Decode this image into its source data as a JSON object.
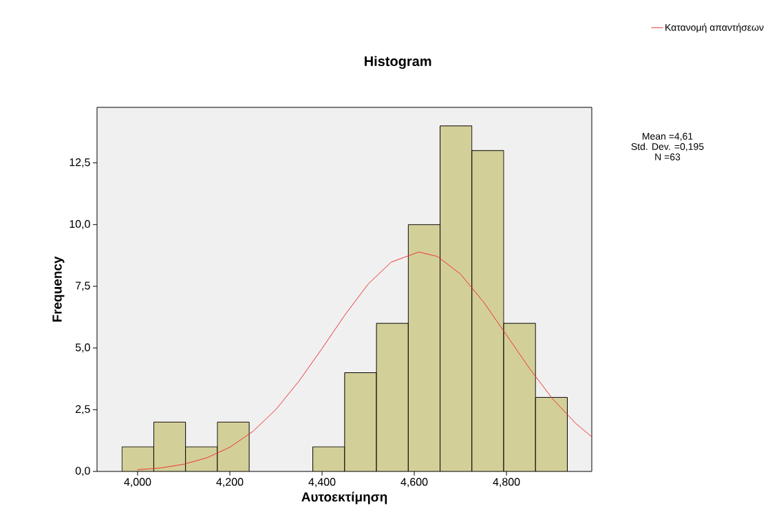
{
  "chart_data": {
    "type": "histogram",
    "title": "Histogram",
    "xlabel": "Αυτοεκτίμηση",
    "ylabel": "Frequency",
    "bins": [
      3.966,
      4.035,
      4.104,
      4.173,
      4.242,
      4.311,
      4.38,
      4.449,
      4.518,
      4.587,
      4.656,
      4.725,
      4.794,
      4.863,
      4.932
    ],
    "values": [
      1,
      2,
      1,
      2,
      0,
      0,
      1,
      4,
      6,
      10,
      14,
      13,
      6,
      3
    ],
    "color": "#d3cf98",
    "series": [
      {
        "name": "Κατανομή απαντήσεων",
        "type": "line",
        "color": "#ee3333",
        "x": [
          4.0,
          4.05,
          4.1,
          4.15,
          4.2,
          4.25,
          4.3,
          4.35,
          4.4,
          4.45,
          4.5,
          4.55,
          4.61,
          4.65,
          4.7,
          4.75,
          4.8,
          4.85,
          4.9,
          4.95,
          4.985
        ],
        "values": [
          0.07,
          0.14,
          0.29,
          0.55,
          0.98,
          1.62,
          2.51,
          3.66,
          4.98,
          6.35,
          7.59,
          8.48,
          8.89,
          8.71,
          8.0,
          6.87,
          5.53,
          4.17,
          2.94,
          1.95,
          1.4
        ]
      }
    ],
    "xlim": [
      3.912,
      4.985
    ],
    "ylim": [
      0,
      14.75
    ],
    "xticks": [
      {
        "value": 4.0,
        "label": "4,000"
      },
      {
        "value": 4.2,
        "label": "4,200"
      },
      {
        "value": 4.4,
        "label": "4,400"
      },
      {
        "value": 4.6,
        "label": "4,600"
      },
      {
        "value": 4.8,
        "label": "4,800"
      }
    ],
    "yticks": [
      {
        "value": 0,
        "label": "0,0"
      },
      {
        "value": 2.5,
        "label": "2,5"
      },
      {
        "value": 5,
        "label": "5,0"
      },
      {
        "value": 7.5,
        "label": "7,5"
      },
      {
        "value": 10,
        "label": "10,0"
      },
      {
        "value": 12.5,
        "label": "12,5"
      }
    ],
    "legend": "top right",
    "annotations": [
      "Mean =4,61",
      "Std. Dev. =0,195",
      "N =63"
    ]
  }
}
